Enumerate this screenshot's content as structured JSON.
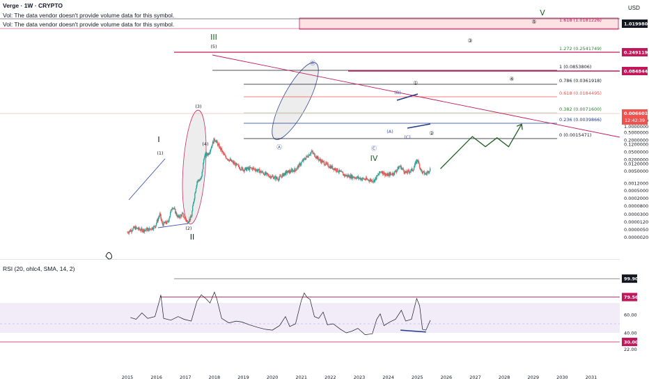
{
  "header": {
    "title": "Verge · 1W · CRYPTO",
    "vol_warning_1": "Vol: The data vendor doesn't provide volume data for this symbol.",
    "vol_warning_2": "Vol: The data vendor doesn't provide volume data for this symbol."
  },
  "currency": "USD",
  "colors": {
    "up": "#26a69a",
    "down": "#ef5350",
    "red_line": "#c2185b",
    "blue": "#1e3a8a",
    "green": "#1b5e20",
    "grey_fill": "#d1d4dc"
  },
  "chart_data": [
    {
      "type": "candlestick",
      "scale": "log",
      "x_axis_ticks": [
        "2015",
        "2016",
        "2017",
        "2018",
        "2019",
        "2020",
        "2021",
        "2022",
        "2023",
        "2024",
        "2025",
        "2026",
        "2027",
        "2028",
        "2029",
        "2030",
        "2031"
      ],
      "y_axis_ticks": [
        "2.0000000",
        "1.0000000",
        "0.5000000",
        "0.2000000",
        "0.1200000",
        "0.0500000",
        "0.0200000",
        "0.0120000",
        "0.0050000",
        "0.0012000",
        "0.0005000",
        "0.0002000",
        "0.0000800",
        "0.0000300",
        "0.0000120",
        "0.0000050",
        "0.0000020"
      ],
      "ylim": [
        1.5e-06,
        2.2
      ],
      "price_path": [
        [
          2015.0,
          3.5e-06
        ],
        [
          2015.25,
          6e-06
        ],
        [
          2015.5,
          4.5e-06
        ],
        [
          2015.75,
          5e-06
        ],
        [
          2015.95,
          7e-06
        ],
        [
          2016.12,
          3e-05
        ],
        [
          2016.2,
          9e-06
        ],
        [
          2016.4,
          1.2e-05
        ],
        [
          2016.55,
          8e-05
        ],
        [
          2016.75,
          2e-05
        ],
        [
          2016.9,
          3e-05
        ],
        [
          2017.05,
          1.2e-05
        ],
        [
          2017.2,
          2e-05
        ],
        [
          2017.3,
          0.0002
        ],
        [
          2017.4,
          0.0015
        ],
        [
          2017.55,
          0.002
        ],
        [
          2017.65,
          0.03
        ],
        [
          2017.8,
          0.04
        ],
        [
          2018.0,
          0.23
        ],
        [
          2018.15,
          0.1
        ],
        [
          2018.35,
          0.03
        ],
        [
          2018.6,
          0.015
        ],
        [
          2018.85,
          0.008
        ],
        [
          2019.0,
          0.006
        ],
        [
          2019.3,
          0.007
        ],
        [
          2019.55,
          0.005
        ],
        [
          2019.85,
          0.003
        ],
        [
          2020.2,
          0.002
        ],
        [
          2020.45,
          0.004
        ],
        [
          2020.8,
          0.006
        ],
        [
          2021.1,
          0.02
        ],
        [
          2021.35,
          0.05
        ],
        [
          2021.6,
          0.02
        ],
        [
          2021.9,
          0.01
        ],
        [
          2022.2,
          0.006
        ],
        [
          2022.5,
          0.003
        ],
        [
          2022.8,
          0.0025
        ],
        [
          2023.1,
          0.002
        ],
        [
          2023.5,
          0.0016
        ],
        [
          2023.75,
          0.005
        ],
        [
          2023.95,
          0.003
        ],
        [
          2024.2,
          0.004
        ],
        [
          2024.4,
          0.009
        ],
        [
          2024.6,
          0.004
        ],
        [
          2024.85,
          0.006
        ],
        [
          2025.0,
          0.02
        ],
        [
          2025.15,
          0.0045
        ],
        [
          2025.3,
          0.0035
        ],
        [
          2025.45,
          0.0066
        ]
      ],
      "last_price": "0.0066012",
      "countdown": "12:42:39",
      "price_badges": [
        "1.0199807",
        "0.2491191",
        "0.0848447"
      ],
      "fib_levels": [
        {
          "label": "1.618 (1.0181226)",
          "value": 1.0181226
        },
        {
          "label": "1.272 (0.2541749)",
          "value": 0.2541749
        },
        {
          "label": "1 (0.0853806)",
          "value": 0.0853806
        },
        {
          "label": "0.786 (0.0361918)",
          "value": 0.0361918
        },
        {
          "label": "0.618 (0.0184495)",
          "value": 0.0184495
        },
        {
          "label": "0.382 (0.0071600)",
          "value": 0.00716
        },
        {
          "label": "0.236 (0.0039866)",
          "value": 0.0039866
        },
        {
          "label": "0 (0.0015471)",
          "value": 0.0015471
        }
      ],
      "wave_labels": {
        "I": "I",
        "II": "II",
        "III": "III",
        "IV": "IV",
        "V": "V",
        "p1": "(1)",
        "p2": "(2)",
        "p3": "(3)",
        "p4": "(4)",
        "p5": "(5)",
        "A": "Ⓐ",
        "B": "Ⓑ",
        "C": "Ⓒ",
        "sa": "(A)",
        "sb": "(B)",
        "sc": "(C)",
        "c1": "①",
        "c2": "②",
        "c3": "③",
        "c4": "④",
        "c5": "⑤"
      },
      "projection_path": [
        [
          2025.8,
          0.0066
        ],
        [
          2026.9,
          0.3
        ],
        [
          2027.35,
          0.09
        ],
        [
          2027.75,
          0.26
        ],
        [
          2028.15,
          0.09
        ],
        [
          2028.6,
          1.3
        ]
      ]
    },
    {
      "type": "line",
      "title": "RSI (20, ohlc4, SMA, 14, 2)",
      "y_axis_ticks": [
        "99.90",
        "79.56",
        "60.00",
        "40.00",
        "30.00",
        "22.00"
      ],
      "ylim": [
        18,
        100
      ],
      "levels": [
        {
          "label": "99.90",
          "value": 99.9
        },
        {
          "label": "79.56",
          "value": 79.56
        },
        {
          "label": "30.00",
          "value": 30.0
        }
      ],
      "band": [
        40,
        73
      ],
      "rsi_path": [
        [
          2015.1,
          57
        ],
        [
          2015.3,
          55
        ],
        [
          2015.5,
          62
        ],
        [
          2015.7,
          56
        ],
        [
          2015.95,
          58
        ],
        [
          2016.1,
          75
        ],
        [
          2016.15,
          82
        ],
        [
          2016.25,
          56
        ],
        [
          2016.5,
          54
        ],
        [
          2016.75,
          58
        ],
        [
          2016.95,
          55
        ],
        [
          2017.2,
          53
        ],
        [
          2017.4,
          75
        ],
        [
          2017.55,
          82
        ],
        [
          2017.7,
          78
        ],
        [
          2017.85,
          73
        ],
        [
          2018.0,
          85
        ],
        [
          2018.08,
          78
        ],
        [
          2018.25,
          56
        ],
        [
          2018.5,
          51
        ],
        [
          2018.75,
          53
        ],
        [
          2018.95,
          52
        ],
        [
          2019.2,
          49
        ],
        [
          2019.5,
          46
        ],
        [
          2019.75,
          44
        ],
        [
          2020.0,
          43
        ],
        [
          2020.25,
          48
        ],
        [
          2020.45,
          58
        ],
        [
          2020.6,
          47
        ],
        [
          2020.8,
          50
        ],
        [
          2021.0,
          76
        ],
        [
          2021.1,
          84
        ],
        [
          2021.2,
          79
        ],
        [
          2021.3,
          77
        ],
        [
          2021.45,
          58
        ],
        [
          2021.6,
          56
        ],
        [
          2021.75,
          63
        ],
        [
          2021.9,
          49
        ],
        [
          2022.1,
          50
        ],
        [
          2022.35,
          44
        ],
        [
          2022.55,
          40
        ],
        [
          2022.75,
          42
        ],
        [
          2022.95,
          45
        ],
        [
          2023.2,
          38
        ],
        [
          2023.45,
          39
        ],
        [
          2023.6,
          55
        ],
        [
          2023.72,
          61
        ],
        [
          2023.85,
          48
        ],
        [
          2024.05,
          52
        ],
        [
          2024.25,
          55
        ],
        [
          2024.45,
          65
        ],
        [
          2024.6,
          53
        ],
        [
          2024.8,
          55
        ],
        [
          2024.98,
          78
        ],
        [
          2025.08,
          70
        ],
        [
          2025.18,
          44
        ],
        [
          2025.3,
          43
        ],
        [
          2025.45,
          54
        ]
      ]
    }
  ]
}
